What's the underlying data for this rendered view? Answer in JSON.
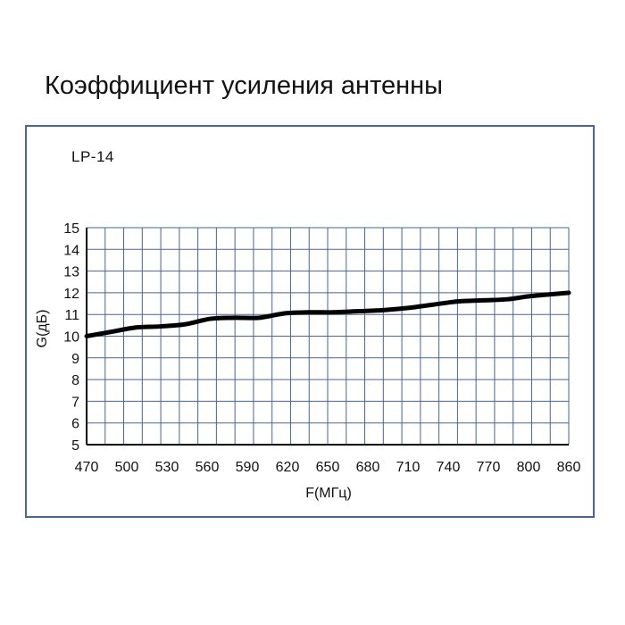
{
  "title": "Коэффициент усиления антенны",
  "model_label": "LP-14",
  "chart_data": {
    "type": "line",
    "title": "Коэффициент усиления антенны",
    "subtitle": "LP-14",
    "xlabel": "F(МГц)",
    "ylabel": "G(дБ)",
    "xlim": [
      470,
      860
    ],
    "ylim": [
      5,
      15
    ],
    "x_ticks": [
      470,
      500,
      530,
      560,
      590,
      620,
      650,
      680,
      710,
      740,
      770,
      800,
      860
    ],
    "y_ticks": [
      5,
      6,
      7,
      8,
      9,
      10,
      11,
      12,
      13,
      14,
      15
    ],
    "grid": true,
    "legend": "none",
    "colors": {
      "grid": "#4a6591",
      "line": "#000000",
      "frame": "#4a6591"
    },
    "series": [
      {
        "x": [
          470,
          490,
          510,
          530,
          550,
          570,
          590,
          610,
          630,
          650,
          670,
          690,
          710,
          730,
          750,
          770,
          790,
          810,
          830,
          860
        ],
        "values": [
          10.0,
          10.2,
          10.4,
          10.45,
          10.55,
          10.8,
          10.85,
          10.85,
          11.05,
          11.1,
          11.1,
          11.15,
          11.2,
          11.3,
          11.45,
          11.6,
          11.65,
          11.7,
          11.85,
          12.0
        ]
      }
    ]
  }
}
